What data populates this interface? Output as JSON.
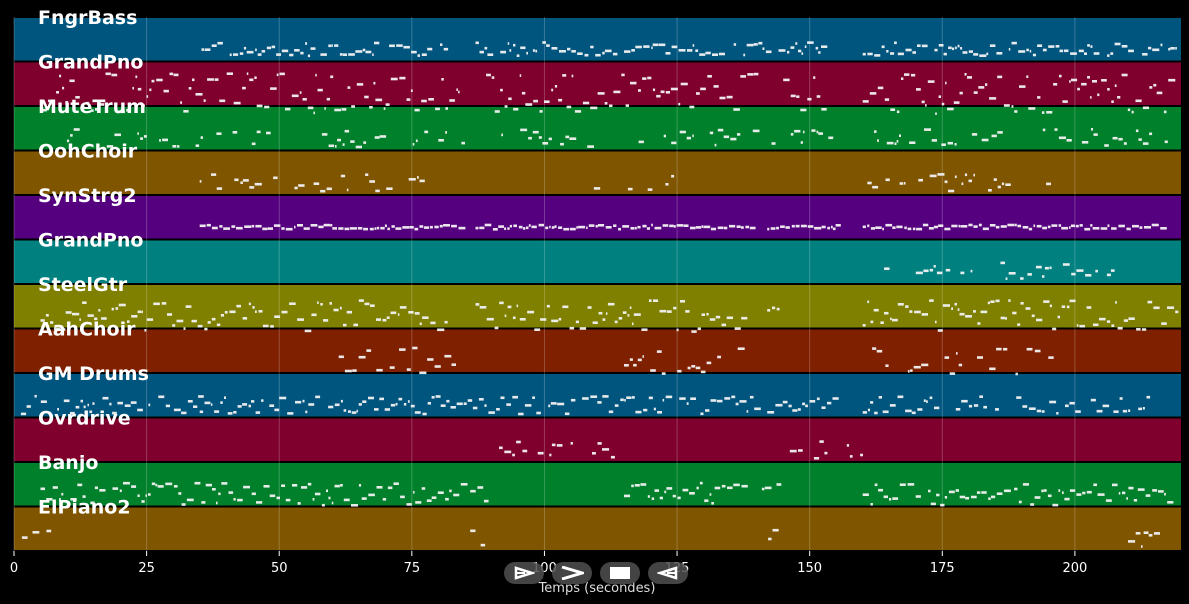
{
  "chart_data": {
    "type": "piano-roll",
    "xlabel": "Temps (secondes)",
    "xlim": [
      0,
      220
    ],
    "xticks": [
      0,
      25,
      50,
      75,
      100,
      125,
      150,
      175,
      200
    ],
    "grid": true,
    "tracks": [
      {
        "name": "FngrBass",
        "color": "#00557f",
        "segments": [
          [
            35,
            82
          ],
          [
            87,
            113
          ],
          [
            115,
            153
          ],
          [
            160,
            219
          ]
        ],
        "density": 0.9,
        "spread": 0.15
      },
      {
        "name": "GrandPno",
        "color": "#7f002d",
        "segments": [
          [
            5,
            84
          ],
          [
            89,
            140
          ],
          [
            145,
            153
          ],
          [
            160,
            219
          ]
        ],
        "density": 1.0,
        "spread": 0.45
      },
      {
        "name": "MuteTrum",
        "color": "#00802b",
        "segments": [
          [
            10,
            85
          ],
          [
            89,
            140
          ],
          [
            142,
            155
          ],
          [
            160,
            219
          ]
        ],
        "density": 0.55,
        "spread": 0.2
      },
      {
        "name": "OohChoir",
        "color": "#7f5500",
        "segments": [
          [
            35,
            83
          ],
          [
            108,
            124
          ],
          [
            160,
            195
          ]
        ],
        "density": 0.5,
        "spread": 0.2
      },
      {
        "name": "SynStrg2",
        "color": "#55007f",
        "segments": [
          [
            35,
            84
          ],
          [
            87,
            139
          ],
          [
            142,
            155
          ],
          [
            160,
            217
          ]
        ],
        "density": 1.0,
        "spread": 0.05
      },
      {
        "name": "GrandPno",
        "color": "#00807f",
        "segments": [
          [
            163,
            165
          ],
          [
            170,
            208
          ]
        ],
        "density": 0.7,
        "spread": 0.2
      },
      {
        "name": "SteelGtr",
        "color": "#7f7f00",
        "segments": [
          [
            5,
            82
          ],
          [
            87,
            138
          ],
          [
            142,
            144
          ],
          [
            160,
            219
          ]
        ],
        "density": 1.0,
        "spread": 0.35
      },
      {
        "name": "AahChoir",
        "color": "#7f2000",
        "segments": [
          [
            60,
            83
          ],
          [
            115,
            137
          ],
          [
            160,
            195
          ]
        ],
        "density": 0.6,
        "spread": 0.3
      },
      {
        "name": "GM Drums",
        "color": "#00557f",
        "segments": [
          [
            0,
            35
          ],
          [
            35,
            140
          ],
          [
            142,
            155
          ],
          [
            160,
            214
          ]
        ],
        "density": 0.85,
        "spread": 0.2
      },
      {
        "name": "Ovrdrive",
        "color": "#7f002d",
        "segments": [
          [
            90,
            113
          ],
          [
            145,
            153
          ],
          [
            157,
            160
          ]
        ],
        "density": 0.55,
        "spread": 0.2
      },
      {
        "name": "Banjo",
        "color": "#00802b",
        "segments": [
          [
            5,
            85
          ],
          [
            86,
            89
          ],
          [
            115,
            138
          ],
          [
            141,
            144
          ],
          [
            160,
            219
          ]
        ],
        "density": 0.95,
        "spread": 0.25
      },
      {
        "name": "ElPiano2",
        "color": "#7f5500",
        "segments": [
          [
            1,
            7
          ],
          [
            86,
            89
          ],
          [
            141,
            144
          ],
          [
            210,
            217
          ]
        ],
        "density": 0.8,
        "spread": 0.2
      }
    ]
  },
  "controls": {
    "icons": [
      "play-first-icon",
      "play-icon",
      "stop-icon",
      "play-reverse-icon"
    ]
  }
}
